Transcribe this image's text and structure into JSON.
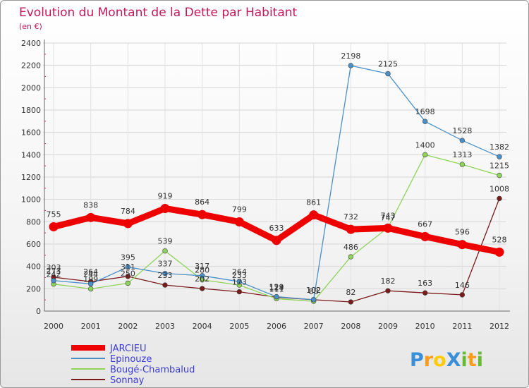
{
  "chart_data": {
    "type": "line",
    "title": "Evolution du Montant de la Dette par Habitant",
    "subtitle": "(en €)",
    "categories": [
      "2000",
      "2001",
      "2002",
      "2003",
      "2004",
      "2005",
      "2006",
      "2007",
      "2008",
      "2009",
      "2010",
      "2011",
      "2012"
    ],
    "ylim": [
      0,
      2400
    ],
    "yticks": [
      0,
      200,
      400,
      600,
      800,
      1000,
      1200,
      1400,
      1600,
      1800,
      2000,
      2200,
      2400
    ],
    "grid": true,
    "legend_position": "bottom-left",
    "series": [
      {
        "name": "JARCIEU",
        "color": "#ee0000",
        "values": [
          755,
          838,
          784,
          919,
          864,
          799,
          633,
          861,
          732,
          743,
          667,
          596,
          528
        ]
      },
      {
        "name": "Epinouze",
        "color": "#4a90c8",
        "values": [
          273,
          244,
          395,
          337,
          317,
          264,
          129,
          102,
          2198,
          2125,
          1698,
          1528,
          1382
        ]
      },
      {
        "name": "Bougé-Chambalud",
        "color": "#8fd45a",
        "values": [
          242,
          199,
          250,
          539,
          280,
          233,
          111,
          88,
          486,
          747,
          1400,
          1313,
          1215
        ]
      },
      {
        "name": "Sonnay",
        "color": "#7a1a1a",
        "values": [
          303,
          264,
          311,
          233,
          202,
          173,
          124,
          102,
          82,
          182,
          163,
          146,
          1008
        ]
      }
    ]
  },
  "logo": {
    "text": "ProXiti",
    "letters": [
      "P",
      "r",
      "o",
      "X",
      "i",
      "t",
      "i"
    ],
    "colors": [
      "#3a8fd9",
      "#ff9a1a",
      "#ffcc00",
      "#3a8fd9",
      "#66bb33",
      "#ff9a1a",
      "#66bb33"
    ]
  }
}
